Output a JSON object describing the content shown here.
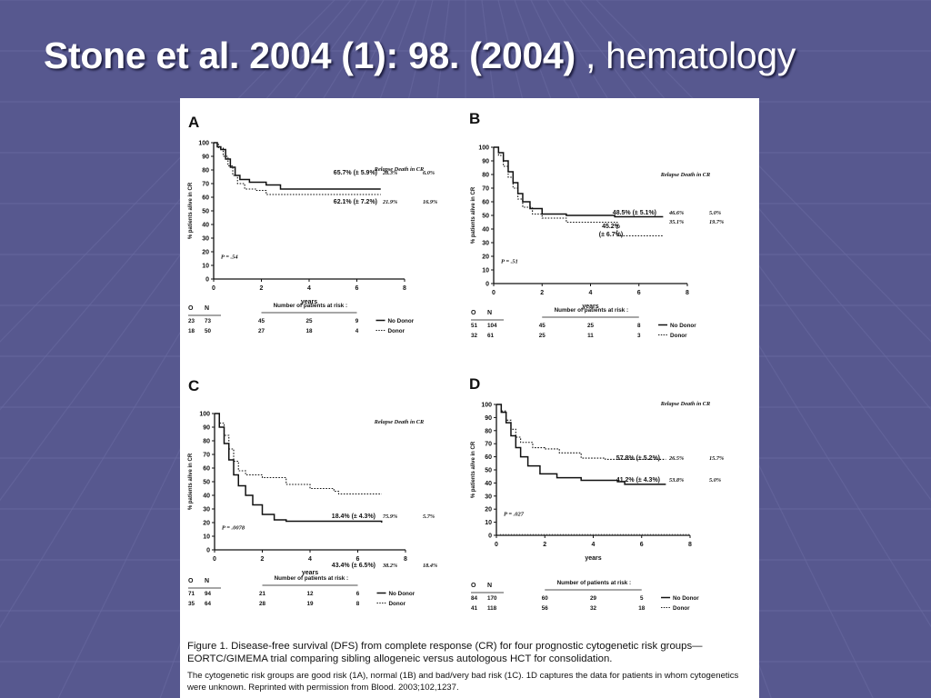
{
  "slide": {
    "title_bold": "Stone et al. 2004 (1): 98. (2004)",
    "title_rest": " , hematology",
    "colors": {
      "background": "#57588f",
      "title": "#ffffff",
      "figure_bg": "#ffffff"
    }
  },
  "caption": {
    "main": "Figure 1. Disease-free survival (DFS) from complete response (CR) for four prognostic cytogenetic risk groups—EORTC/GIMEMA trial comparing sibling allogeneic versus autologous HCT for consolidation.",
    "sub": "The cytogenetic risk groups are good risk (1A), normal (1B) and bad/very bad risk (1C). 1D captures the data for patients in whom cytogenetics were unknown. Reprinted with permission from Blood. 2003;102,1237."
  },
  "chart_data": [
    {
      "type": "line",
      "panel_label": "A",
      "ylabel": "% patients alive in CR",
      "xlabel": "years",
      "xlim": [
        0,
        8
      ],
      "ylim": [
        0,
        100
      ],
      "x_ticks": [
        "0",
        "2",
        "4",
        "6",
        "8"
      ],
      "y_ticks": [
        "0",
        "10",
        "20",
        "30",
        "40",
        "50",
        "60",
        "70",
        "80",
        "90",
        "100"
      ],
      "p_value": "P = .54",
      "col_header": "Relapse  Death in CR",
      "series": [
        {
          "style": "solid",
          "points": [
            [
              0,
              100
            ],
            [
              0.15,
              97
            ],
            [
              0.3,
              95
            ],
            [
              0.5,
              88
            ],
            [
              0.7,
              82
            ],
            [
              0.9,
              76
            ],
            [
              1.1,
              73
            ],
            [
              1.5,
              71
            ],
            [
              2.2,
              69
            ],
            [
              2.8,
              66
            ],
            [
              3.5,
              66
            ],
            [
              7,
              66
            ]
          ],
          "label": "65.7% (± 5.9%)",
          "relapse": "28.3%",
          "death": "6.0%"
        },
        {
          "style": "dotted",
          "points": [
            [
              0,
              100
            ],
            [
              0.2,
              96
            ],
            [
              0.4,
              90
            ],
            [
              0.6,
              83
            ],
            [
              0.8,
              76
            ],
            [
              1.0,
              70
            ],
            [
              1.3,
              66
            ],
            [
              1.8,
              65
            ],
            [
              2.2,
              62
            ],
            [
              3,
              62
            ],
            [
              7,
              62
            ]
          ],
          "label": "62.1% (± 7.2%)",
          "relapse": "21.9%",
          "death": "16.9%"
        }
      ],
      "risk_table": {
        "head_o": "O",
        "head_n": "N",
        "title": "Number of patients at risk :",
        "rows": [
          {
            "o": "23",
            "n": "73",
            "values": [
              "45",
              "25",
              "9"
            ],
            "legend": "No Donor",
            "style": "solid"
          },
          {
            "o": "18",
            "n": "50",
            "values": [
              "27",
              "18",
              "4"
            ],
            "legend": "Donor",
            "style": "dotted"
          }
        ]
      }
    },
    {
      "type": "line",
      "panel_label": "B",
      "ylabel": "% patients alive in CR",
      "xlabel": "years",
      "xlim": [
        0,
        8
      ],
      "ylim": [
        0,
        100
      ],
      "x_ticks": [
        "0",
        "2",
        "4",
        "6",
        "8"
      ],
      "y_ticks": [
        "0",
        "10",
        "20",
        "30",
        "40",
        "50",
        "60",
        "70",
        "80",
        "90",
        "100"
      ],
      "p_value": "P = .51",
      "col_header": "Relapse  Death in CR",
      "series": [
        {
          "style": "solid",
          "points": [
            [
              0,
              100
            ],
            [
              0.2,
              96
            ],
            [
              0.4,
              90
            ],
            [
              0.6,
              82
            ],
            [
              0.8,
              74
            ],
            [
              1.0,
              66
            ],
            [
              1.2,
              60
            ],
            [
              1.5,
              55
            ],
            [
              2.0,
              51
            ],
            [
              3,
              50
            ],
            [
              5,
              49
            ],
            [
              7,
              49
            ]
          ],
          "label": "48.5% (± 5.1%)",
          "relapse": "46.6%",
          "death": "5.0%"
        },
        {
          "style": "dotted",
          "points": [
            [
              0,
              100
            ],
            [
              0.2,
              94
            ],
            [
              0.4,
              86
            ],
            [
              0.6,
              78
            ],
            [
              0.8,
              70
            ],
            [
              1.0,
              62
            ],
            [
              1.2,
              56
            ],
            [
              1.6,
              51
            ],
            [
              2.0,
              48
            ],
            [
              3,
              45
            ],
            [
              4,
              45
            ],
            [
              5.1,
              45
            ],
            [
              5.1,
              35
            ],
            [
              7,
              35
            ]
          ],
          "label": "45.2% (± 6.7%)",
          "relapse": "35.1%",
          "death": "19.7%"
        }
      ],
      "risk_table": {
        "head_o": "O",
        "head_n": "N",
        "title": "Number of patients at risk :",
        "rows": [
          {
            "o": "51",
            "n": "104",
            "values": [
              "45",
              "25",
              "8"
            ],
            "legend": "No Donor",
            "style": "solid"
          },
          {
            "o": "32",
            "n": "61",
            "values": [
              "25",
              "11",
              "3"
            ],
            "legend": "Donor",
            "style": "dotted"
          }
        ]
      }
    },
    {
      "type": "line",
      "panel_label": "C",
      "ylabel": "% patients alive in CR",
      "xlabel": "years",
      "xlim": [
        0,
        8
      ],
      "ylim": [
        0,
        100
      ],
      "x_ticks": [
        "0",
        "2",
        "4",
        "6",
        "8"
      ],
      "y_ticks": [
        "0",
        "10",
        "20",
        "30",
        "40",
        "50",
        "60",
        "70",
        "80",
        "90",
        "100"
      ],
      "p_value": "P = .0078",
      "col_header": "Relapse  Death in CR",
      "series": [
        {
          "style": "solid",
          "points": [
            [
              0,
              100
            ],
            [
              0.2,
              90
            ],
            [
              0.4,
              78
            ],
            [
              0.6,
              66
            ],
            [
              0.8,
              55
            ],
            [
              1.0,
              47
            ],
            [
              1.3,
              40
            ],
            [
              1.6,
              33
            ],
            [
              2.0,
              26
            ],
            [
              2.5,
              22
            ],
            [
              3,
              21
            ],
            [
              7,
              20
            ]
          ],
          "label": "18.4% (± 4.3%)",
          "relapse": "75.9%",
          "death": "5.7%"
        },
        {
          "style": "dotted",
          "points": [
            [
              0,
              100
            ],
            [
              0.2,
              93
            ],
            [
              0.4,
              84
            ],
            [
              0.6,
              74
            ],
            [
              0.8,
              65
            ],
            [
              1.0,
              58
            ],
            [
              1.3,
              55
            ],
            [
              2.0,
              53
            ],
            [
              3,
              48
            ],
            [
              4,
              45
            ],
            [
              5,
              43
            ],
            [
              5.2,
              41
            ],
            [
              7,
              41
            ]
          ],
          "label": "43.4% (± 6.5%)",
          "relapse": "38.2%",
          "death": "18.4%"
        }
      ],
      "risk_table": {
        "head_o": "O",
        "head_n": "N",
        "title": "Number of patients at risk :",
        "rows": [
          {
            "o": "71",
            "n": "94",
            "values": [
              "21",
              "12",
              "6"
            ],
            "legend": "No Donor",
            "style": "solid"
          },
          {
            "o": "35",
            "n": "64",
            "values": [
              "28",
              "19",
              "8"
            ],
            "legend": "Donor",
            "style": "dotted"
          }
        ]
      }
    },
    {
      "type": "line",
      "panel_label": "D",
      "ylabel": "% patients alive in CR",
      "xlabel": "years",
      "xlim": [
        0,
        8
      ],
      "ylim": [
        0,
        100
      ],
      "x_ticks": [
        "0",
        "2",
        "4",
        "6",
        "8"
      ],
      "y_ticks": [
        "0",
        "10",
        "20",
        "30",
        "40",
        "50",
        "60",
        "70",
        "80",
        "90",
        "100"
      ],
      "p_value": "P = .027",
      "col_header": "Relapse  Death in CR",
      "series": [
        {
          "style": "solid",
          "points": [
            [
              0,
              100
            ],
            [
              0.2,
              94
            ],
            [
              0.4,
              86
            ],
            [
              0.6,
              76
            ],
            [
              0.8,
              67
            ],
            [
              1.0,
              60
            ],
            [
              1.3,
              53
            ],
            [
              1.8,
              47
            ],
            [
              2.5,
              44
            ],
            [
              3.5,
              42
            ],
            [
              5,
              41
            ],
            [
              5.3,
              39
            ],
            [
              7,
              39
            ]
          ],
          "label": "41.2% (± 4.3%)",
          "relapse": "53.8%",
          "death": "5.0%"
        },
        {
          "style": "dotted",
          "points": [
            [
              0,
              100
            ],
            [
              0.2,
              95
            ],
            [
              0.4,
              88
            ],
            [
              0.6,
              81
            ],
            [
              0.8,
              75
            ],
            [
              1.0,
              71
            ],
            [
              1.5,
              67
            ],
            [
              2.0,
              66
            ],
            [
              2.6,
              63
            ],
            [
              3.5,
              59
            ],
            [
              4.5,
              58
            ],
            [
              7,
              58
            ]
          ],
          "label": "57.8% (± 5.2%)",
          "relapse": "26.5%",
          "death": "15.7%"
        }
      ],
      "risk_table": {
        "head_o": "O",
        "head_n": "N",
        "title": "Number of patients at risk :",
        "rows": [
          {
            "o": "84",
            "n": "170",
            "values": [
              "60",
              "29",
              "5"
            ],
            "legend": "No Donor",
            "style": "solid"
          },
          {
            "o": "41",
            "n": "118",
            "values": [
              "56",
              "32",
              "18"
            ],
            "legend": "Donor",
            "style": "dotted"
          }
        ]
      }
    }
  ]
}
